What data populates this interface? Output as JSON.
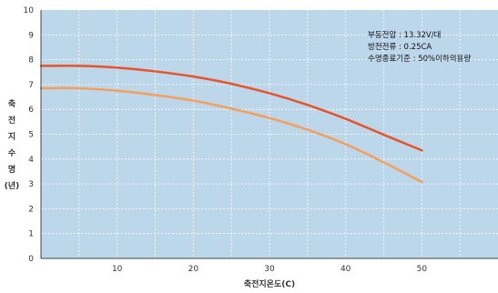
{
  "chart_data": {
    "type": "line",
    "xlabel": "축전지온도(C)",
    "ylabel_chars": [
      "축",
      "전",
      "지",
      "수",
      "명",
      "(년)"
    ],
    "xlim": [
      0,
      60
    ],
    "ylim": [
      0,
      10
    ],
    "x_ticks": [
      10,
      20,
      30,
      40,
      50
    ],
    "y_ticks": [
      0,
      1,
      2,
      3,
      4,
      5,
      6,
      7,
      8,
      9,
      10
    ],
    "grid": true,
    "annotations": [
      "부동전압 : 13.32V/대",
      "방전전류 : 0.25CA",
      "수명종료기준 : 50%이하의용량"
    ],
    "series": [
      {
        "color": "#e8542a",
        "x": [
          0,
          5,
          10,
          15,
          20,
          25,
          30,
          35,
          40,
          45,
          50
        ],
        "values": [
          7.75,
          7.75,
          7.68,
          7.53,
          7.32,
          7.03,
          6.65,
          6.18,
          5.62,
          4.98,
          4.35
        ]
      },
      {
        "color": "#f4a05c",
        "x": [
          0,
          5,
          10,
          15,
          20,
          25,
          30,
          35,
          40,
          45,
          50
        ],
        "values": [
          6.85,
          6.85,
          6.75,
          6.58,
          6.35,
          6.03,
          5.65,
          5.18,
          4.6,
          3.87,
          3.08
        ]
      }
    ]
  },
  "colors": {
    "plot_background": "#bcd6ea",
    "grid": "#ffffff",
    "axis": "#444444"
  }
}
